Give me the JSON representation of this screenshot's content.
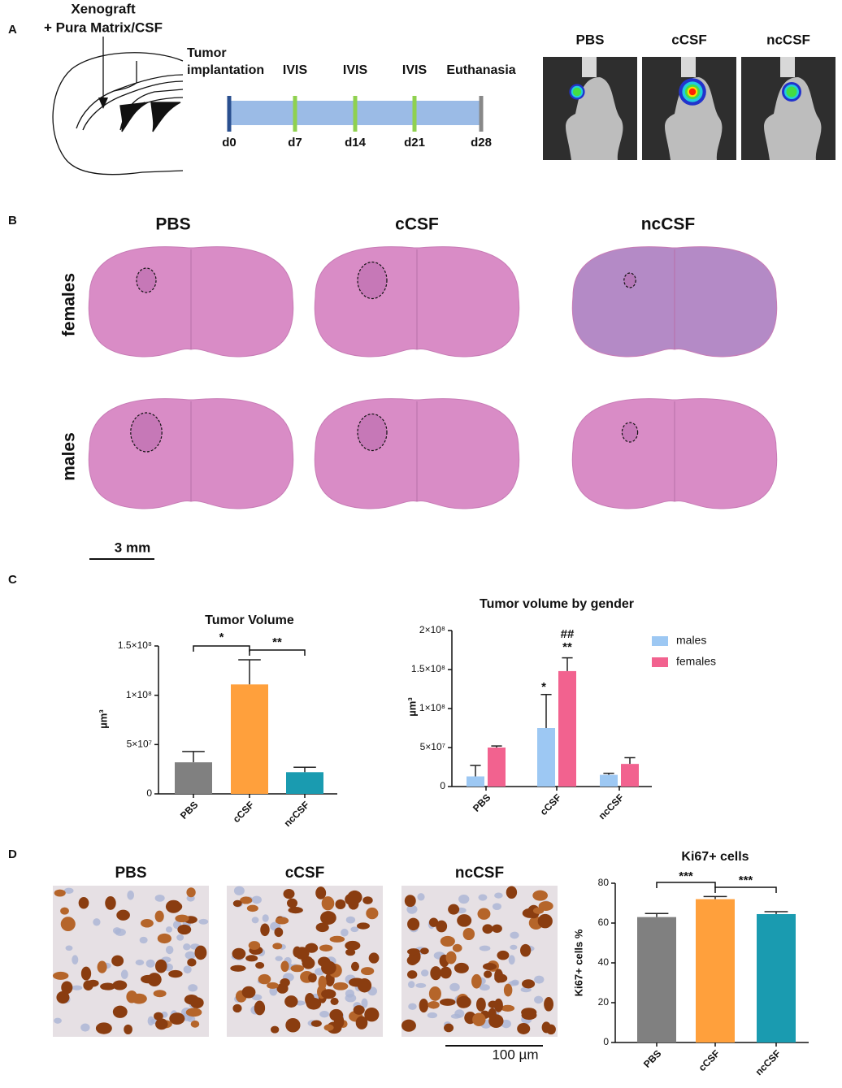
{
  "panel_labels": [
    "A",
    "B",
    "C",
    "D"
  ],
  "panel_a": {
    "injection": [
      "Xenograft",
      "+ Pura Matrix/CSF"
    ],
    "timeline": {
      "events": [
        [
          "Tumor",
          "implantation"
        ],
        [
          "IVIS"
        ],
        [
          "IVIS"
        ],
        [
          "IVIS"
        ],
        [
          "Euthanasia"
        ]
      ],
      "days": [
        "d0",
        "d7",
        "d14",
        "d21",
        "d28"
      ]
    },
    "ivis_labels": [
      "PBS",
      "cCSF",
      "ncCSF"
    ]
  },
  "panel_b": {
    "columns": [
      "PBS",
      "cCSF",
      "ncCSF"
    ],
    "rows": [
      "females",
      "males"
    ],
    "scale_bar": "3 mm"
  },
  "panel_d": {
    "image_labels": [
      "PBS",
      "cCSF",
      "ncCSF"
    ],
    "scale_bar": "100 µm"
  },
  "chart_data": [
    {
      "type": "bar",
      "title": "Tumor Volume",
      "ylabel": "µm³",
      "categories": [
        "PBS",
        "cCSF",
        "ncCSF"
      ],
      "values": [
        32000000,
        111000000,
        22000000
      ],
      "errors": [
        11000000,
        25000000,
        5000000
      ],
      "colors": [
        "#808080",
        "#ffa03c",
        "#1a9bb0"
      ],
      "ylim": [
        0,
        150000000
      ],
      "yticks": [
        0,
        {
          "value": 50000000,
          "label": "5×10⁷"
        },
        {
          "value": 100000000,
          "label": "1×10⁸"
        },
        {
          "value": 150000000,
          "label": "1.5×10⁸"
        }
      ],
      "annotations": [
        "*",
        "**"
      ]
    },
    {
      "type": "grouped_bar",
      "title": "Tumor volume by gender",
      "ylabel": "µm³",
      "categories": [
        "PBS",
        "cCSF",
        "ncCSF"
      ],
      "series": [
        {
          "name": "males",
          "color": "#9dc8f3",
          "values": [
            13000000,
            75000000,
            15000000
          ],
          "errors": [
            14000000,
            43000000,
            2000000
          ]
        },
        {
          "name": "females",
          "color": "#f2628f",
          "values": [
            50000000,
            148000000,
            29000000
          ],
          "errors": [
            2000000,
            17000000,
            8000000
          ]
        }
      ],
      "ylim": [
        0,
        200000000
      ],
      "yticks": [
        0,
        {
          "value": 50000000,
          "label": "5×10⁷"
        },
        {
          "value": 100000000,
          "label": "1×10⁸"
        },
        {
          "value": 150000000,
          "label": "1.5×10⁸"
        },
        {
          "value": 200000000,
          "label": "2×10⁸"
        }
      ],
      "legend": "upper right",
      "annotations": [
        "*",
        "##",
        "**"
      ]
    },
    {
      "type": "bar",
      "title": "Ki67+ cells",
      "ylabel": "Ki67+ cells %",
      "categories": [
        "PBS",
        "cCSF",
        "ncCSF"
      ],
      "values": [
        63,
        72,
        64.5
      ],
      "errors": [
        1.8,
        1.3,
        1.2
      ],
      "colors": [
        "#808080",
        "#ffa03c",
        "#1a9bb0"
      ],
      "ylim": [
        0,
        80
      ],
      "yticks": [
        0,
        20,
        40,
        60,
        80
      ],
      "annotations": [
        "***",
        "***"
      ]
    }
  ]
}
